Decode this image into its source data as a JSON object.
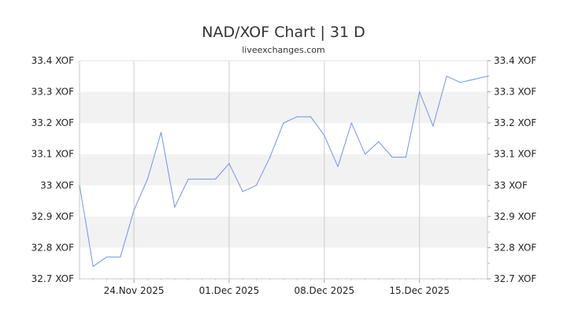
{
  "chart_data": {
    "type": "line",
    "title": "NAD/XOF Chart | 31 D",
    "subtitle": "liveexchanges.com",
    "y_unit": "XOF",
    "ylim": [
      32.7,
      33.4
    ],
    "y_ticks": [
      {
        "value": 33.4,
        "label": "33.4 XOF"
      },
      {
        "value": 33.3,
        "label": "33.3 XOF"
      },
      {
        "value": 33.2,
        "label": "33.2 XOF"
      },
      {
        "value": 33.1,
        "label": "33.1 XOF"
      },
      {
        "value": 33.0,
        "label": "33 XOF"
      },
      {
        "value": 32.9,
        "label": "32.9 XOF"
      },
      {
        "value": 32.8,
        "label": "32.8 XOF"
      },
      {
        "value": 32.7,
        "label": "32.7 XOF"
      }
    ],
    "x_range": [
      "2025-11-20",
      "2025-12-20"
    ],
    "x_ticks": [
      {
        "date": "2025-11-24",
        "label": "24.Nov 2025"
      },
      {
        "date": "2025-12-01",
        "label": "01.Dec 2025"
      },
      {
        "date": "2025-12-08",
        "label": "08.Dec 2025"
      },
      {
        "date": "2025-12-15",
        "label": "15.Dec 2025"
      }
    ],
    "grid": true,
    "series": [
      {
        "color": "#6f96e3",
        "points": [
          [
            "2025-11-20",
            33.0
          ],
          [
            "2025-11-21",
            32.74
          ],
          [
            "2025-11-22",
            32.77
          ],
          [
            "2025-11-23",
            32.77
          ],
          [
            "2025-11-24",
            32.92
          ],
          [
            "2025-11-25",
            33.02
          ],
          [
            "2025-11-26",
            33.17
          ],
          [
            "2025-11-27",
            32.93
          ],
          [
            "2025-11-28",
            33.02
          ],
          [
            "2025-11-29",
            33.02
          ],
          [
            "2025-11-30",
            33.02
          ],
          [
            "2025-12-01",
            33.07
          ],
          [
            "2025-12-02",
            32.98
          ],
          [
            "2025-12-03",
            33.0
          ],
          [
            "2025-12-04",
            33.09
          ],
          [
            "2025-12-05",
            33.2
          ],
          [
            "2025-12-06",
            33.22
          ],
          [
            "2025-12-07",
            33.22
          ],
          [
            "2025-12-08",
            33.16
          ],
          [
            "2025-12-09",
            33.06
          ],
          [
            "2025-12-10",
            33.2
          ],
          [
            "2025-12-11",
            33.1
          ],
          [
            "2025-12-12",
            33.14
          ],
          [
            "2025-12-13",
            33.09
          ],
          [
            "2025-12-14",
            33.09
          ],
          [
            "2025-12-15",
            33.3
          ],
          [
            "2025-12-16",
            33.19
          ],
          [
            "2025-12-17",
            33.35
          ],
          [
            "2025-12-18",
            33.33
          ],
          [
            "2025-12-19",
            33.34
          ],
          [
            "2025-12-20",
            33.35
          ]
        ]
      }
    ]
  }
}
